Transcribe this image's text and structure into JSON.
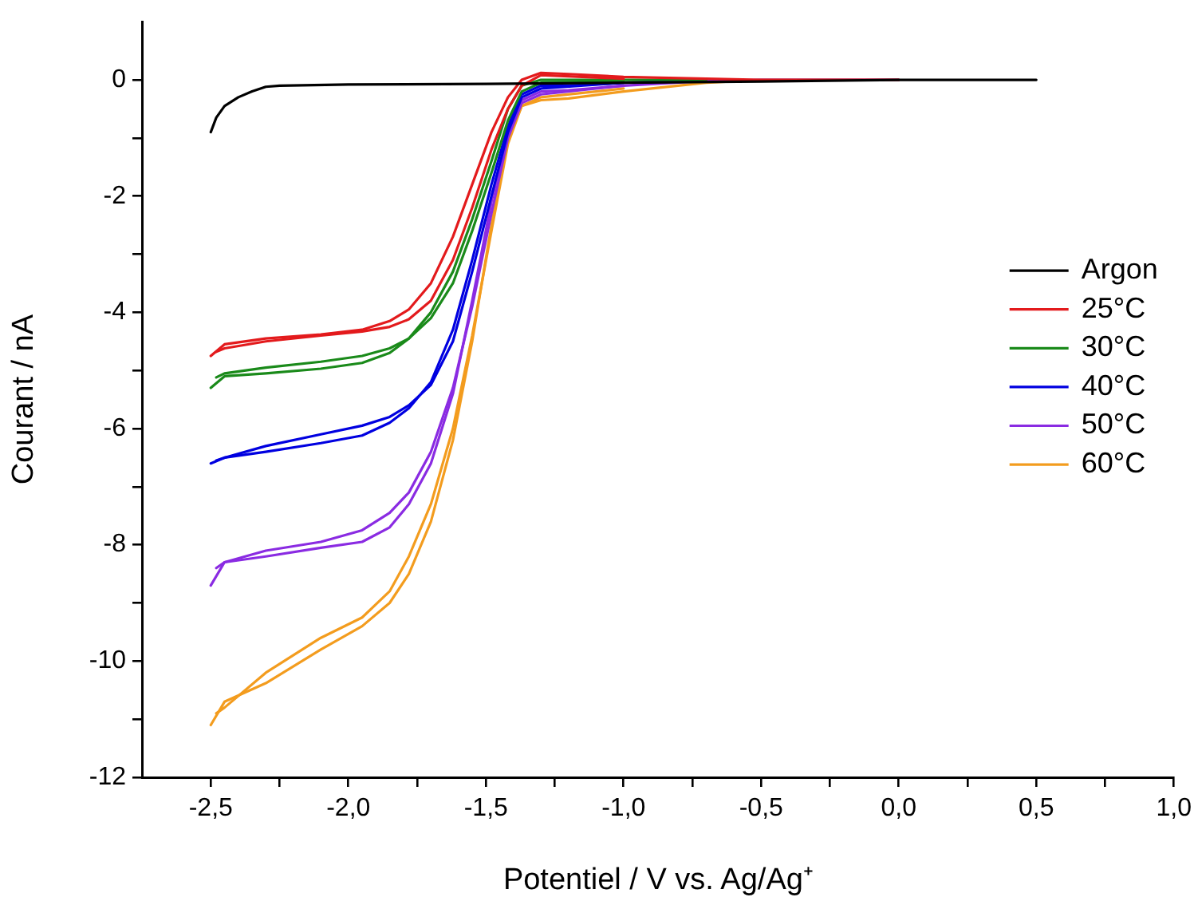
{
  "chart_data": {
    "type": "line",
    "xlabel": "Potentiel / V vs. Ag/Ag⁺",
    "ylabel": "Courant / nA",
    "xlim": [
      -2.75,
      1.0
    ],
    "xticks": [
      {
        "value": -2.5,
        "label": "-2,5"
      },
      {
        "value": -2.25,
        "label": null
      },
      {
        "value": -2.0,
        "label": "-2,0"
      },
      {
        "value": -1.75,
        "label": null
      },
      {
        "value": -1.5,
        "label": "-1,5"
      },
      {
        "value": -1.25,
        "label": null
      },
      {
        "value": -1.0,
        "label": "-1,0"
      },
      {
        "value": -0.75,
        "label": null
      },
      {
        "value": -0.5,
        "label": "-0,5"
      },
      {
        "value": -0.25,
        "label": null
      },
      {
        "value": 0.0,
        "label": "0,0"
      },
      {
        "value": 0.25,
        "label": null
      },
      {
        "value": 0.5,
        "label": "0,5"
      },
      {
        "value": 0.75,
        "label": null
      },
      {
        "value": 1.0,
        "label": "1,0"
      }
    ],
    "ylim": [
      -12,
      1
    ],
    "yticks": [
      -12,
      {
        "value": -11,
        "label": null
      },
      -10,
      {
        "value": -9,
        "label": null
      },
      -8,
      {
        "value": -7,
        "label": null
      },
      -6,
      {
        "value": -5,
        "label": null
      },
      -4,
      {
        "value": -3,
        "label": null
      },
      -2,
      {
        "value": -1,
        "label": null
      },
      0
    ],
    "grid": false,
    "legend": "right",
    "x": [
      -2.5,
      -2.45,
      -2.3,
      -2.1,
      -1.95,
      -1.85,
      -1.78,
      -1.7,
      -1.62,
      -1.55,
      -1.48,
      -1.42,
      -1.37,
      -1.3,
      -1.2,
      -1.0,
      -0.7,
      -0.5,
      0.0
    ],
    "series": [
      {
        "name": "Argon",
        "color": "#000000",
        "x": [
          -2.5,
          -2.48,
          -2.45,
          -2.4,
          -2.35,
          -2.3,
          -2.25,
          -2.0,
          -1.5,
          -1.0,
          -0.5,
          0.0,
          0.5
        ],
        "values": [
          -0.9,
          -0.65,
          -0.45,
          -0.3,
          -0.2,
          -0.12,
          -0.1,
          -0.08,
          -0.07,
          -0.05,
          -0.03,
          0.0,
          0.0
        ]
      },
      {
        "name": "25°C",
        "color": "#e31a1c",
        "values": [
          -4.75,
          -4.55,
          -4.45,
          -4.38,
          -4.3,
          -4.15,
          -3.95,
          -3.5,
          -2.7,
          -1.8,
          -0.9,
          -0.3,
          0.0,
          0.12,
          0.1,
          0.05,
          0.02,
          0.0,
          0.0
        ]
      },
      {
        "color": "#e31a1c",
        "x": [
          -2.48,
          -2.45,
          -2.3,
          -2.1,
          -1.95,
          -1.85,
          -1.78,
          -1.7,
          -1.62,
          -1.55,
          -1.48,
          -1.42,
          -1.37,
          -1.3,
          -1.0
        ],
        "values": [
          -4.68,
          -4.62,
          -4.5,
          -4.4,
          -4.33,
          -4.25,
          -4.12,
          -3.8,
          -3.1,
          -2.2,
          -1.2,
          -0.5,
          -0.1,
          0.08,
          0.02
        ]
      },
      {
        "name": "30°C",
        "color": "#1a8a1a",
        "values": [
          -5.3,
          -5.1,
          -5.05,
          -4.97,
          -4.87,
          -4.7,
          -4.45,
          -4.0,
          -3.3,
          -2.4,
          -1.4,
          -0.5,
          -0.1,
          0.0,
          0.0,
          0.0,
          0.0,
          null,
          null
        ]
      },
      {
        "color": "#1a8a1a",
        "x": [
          -2.48,
          -2.45,
          -2.3,
          -2.1,
          -1.95,
          -1.85,
          -1.78,
          -1.7,
          -1.62,
          -1.55,
          -1.48,
          -1.42,
          -1.37,
          -1.3,
          -1.0
        ],
        "values": [
          -5.12,
          -5.05,
          -4.95,
          -4.85,
          -4.75,
          -4.62,
          -4.45,
          -4.1,
          -3.5,
          -2.6,
          -1.6,
          -0.7,
          -0.2,
          -0.05,
          -0.02
        ]
      },
      {
        "name": "40°C",
        "color": "#0000e0",
        "values": [
          -6.6,
          -6.5,
          -6.4,
          -6.25,
          -6.12,
          -5.9,
          -5.65,
          -5.2,
          -4.3,
          -3.1,
          -1.8,
          -0.8,
          -0.25,
          -0.1,
          -0.1,
          -0.05,
          0.0,
          null,
          null
        ]
      },
      {
        "color": "#0000e0",
        "x": [
          -2.48,
          -2.45,
          -2.3,
          -2.1,
          -1.95,
          -1.85,
          -1.78,
          -1.7,
          -1.62,
          -1.55,
          -1.48,
          -1.42,
          -1.37,
          -1.3,
          -1.0
        ],
        "values": [
          -6.55,
          -6.5,
          -6.3,
          -6.1,
          -5.95,
          -5.8,
          -5.6,
          -5.25,
          -4.5,
          -3.3,
          -2.0,
          -0.9,
          -0.3,
          -0.15,
          -0.05
        ]
      },
      {
        "name": "50°C",
        "color": "#8a2be2",
        "values": [
          -8.7,
          -8.3,
          -8.2,
          -8.05,
          -7.95,
          -7.7,
          -7.3,
          -6.6,
          -5.4,
          -3.8,
          -2.1,
          -0.9,
          -0.35,
          -0.2,
          -0.18,
          -0.1,
          -0.02,
          0.0,
          0.0
        ]
      },
      {
        "color": "#8a2be2",
        "x": [
          -2.48,
          -2.45,
          -2.3,
          -2.1,
          -1.95,
          -1.85,
          -1.78,
          -1.7,
          -1.62,
          -1.55,
          -1.48,
          -1.42,
          -1.37,
          -1.3,
          -1.0
        ],
        "values": [
          -8.4,
          -8.3,
          -8.1,
          -7.95,
          -7.75,
          -7.45,
          -7.1,
          -6.4,
          -5.3,
          -3.9,
          -2.3,
          -1.0,
          -0.4,
          -0.25,
          -0.1
        ]
      },
      {
        "name": "60°C",
        "color": "#f39c1e",
        "values": [
          -11.1,
          -10.7,
          -10.38,
          -9.8,
          -9.4,
          -9.0,
          -8.5,
          -7.6,
          -6.2,
          -4.5,
          -2.5,
          -1.0,
          -0.45,
          -0.35,
          -0.32,
          -0.2,
          -0.05,
          0.0,
          0.0
        ]
      },
      {
        "color": "#f39c1e",
        "x": [
          -2.48,
          -2.45,
          -2.3,
          -2.1,
          -1.95,
          -1.85,
          -1.78,
          -1.7,
          -1.62,
          -1.55,
          -1.48,
          -1.42,
          -1.37,
          -1.3,
          -1.0
        ],
        "values": [
          -10.9,
          -10.8,
          -10.2,
          -9.6,
          -9.25,
          -8.8,
          -8.2,
          -7.3,
          -6.0,
          -4.4,
          -2.6,
          -1.1,
          -0.45,
          -0.3,
          -0.15
        ]
      }
    ]
  }
}
